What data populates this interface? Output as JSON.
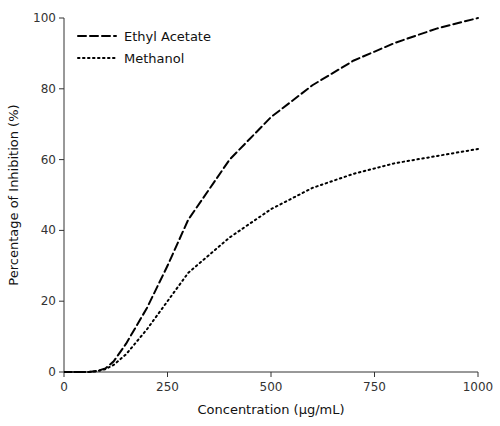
{
  "chart_data": {
    "type": "line",
    "xlabel": "Concentration (μg/mL)",
    "ylabel": "Percentage of Inhibition (%)",
    "x": [
      0,
      30,
      60,
      80,
      100,
      120,
      150,
      200,
      250,
      300,
      400,
      500,
      600,
      700,
      800,
      900,
      1000
    ],
    "series": [
      {
        "name": "Ethyl Acetate",
        "color": "#000000",
        "line_style": "dashed",
        "values": [
          0,
          0,
          0,
          0.3,
          1.0,
          3,
          8,
          18,
          30,
          43,
          60,
          72,
          81,
          88,
          93,
          97,
          100
        ]
      },
      {
        "name": "Methanol",
        "color": "#000000",
        "line_style": "dotted",
        "values": [
          0,
          0,
          0,
          0.2,
          0.8,
          2,
          5,
          12,
          20,
          28,
          38,
          46,
          52,
          56,
          59,
          61,
          63
        ]
      }
    ],
    "xlim": [
      0,
      1000
    ],
    "ylim": [
      0,
      100
    ],
    "xticks": [
      0,
      250,
      500,
      750,
      1000
    ],
    "yticks": [
      0,
      20,
      40,
      60,
      80,
      100
    ],
    "legend": "upper left",
    "grid": false
  }
}
